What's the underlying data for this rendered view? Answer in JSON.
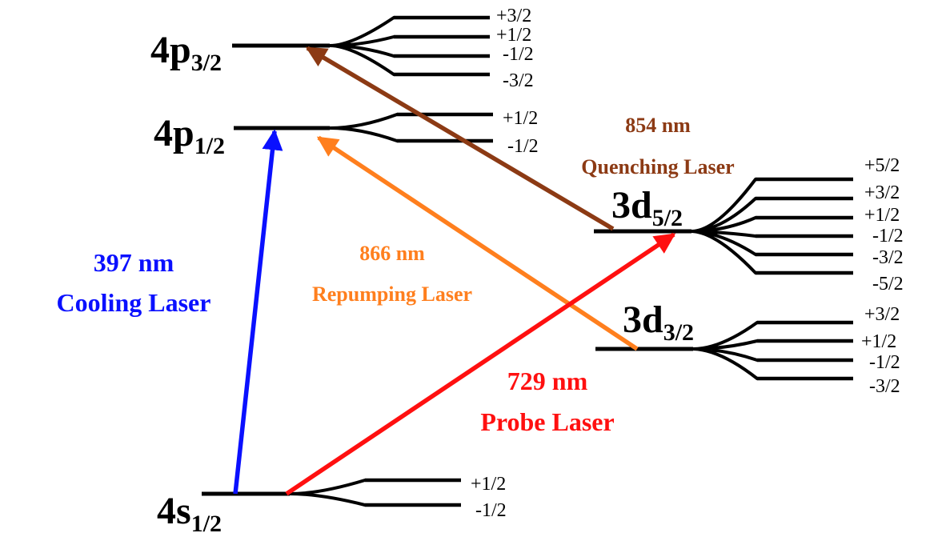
{
  "levels": {
    "p32": {
      "main": "4p",
      "sub": "3/2",
      "sublevels": [
        "+3/2",
        "+1/2",
        "-1/2",
        "-3/2"
      ]
    },
    "p12": {
      "main": "4p",
      "sub": "1/2",
      "sublevels": [
        "+1/2",
        "-1/2"
      ]
    },
    "d52": {
      "main": "3d",
      "sub": "5/2",
      "sublevels": [
        "+5/2",
        "+3/2",
        "+1/2",
        "-1/2",
        "-3/2",
        "-5/2"
      ]
    },
    "d32": {
      "main": "3d",
      "sub": "3/2",
      "sublevels": [
        "+3/2",
        "+1/2",
        "-1/2",
        "-3/2"
      ]
    },
    "s12": {
      "main": "4s",
      "sub": "1/2",
      "sublevels": [
        "+1/2",
        "-1/2"
      ]
    }
  },
  "lasers": {
    "cooling": {
      "wavelength": "397 nm",
      "name": "Cooling Laser",
      "color": "#0a10ff"
    },
    "repumping": {
      "wavelength": "866 nm",
      "name": "Repumping Laser",
      "color": "#ff7f1e"
    },
    "probe": {
      "wavelength": "729 nm",
      "name": "Probe Laser",
      "color": "#ff1010"
    },
    "quenching": {
      "wavelength": "854 nm",
      "name": "Quenching Laser",
      "color": "#8c3a14"
    }
  }
}
